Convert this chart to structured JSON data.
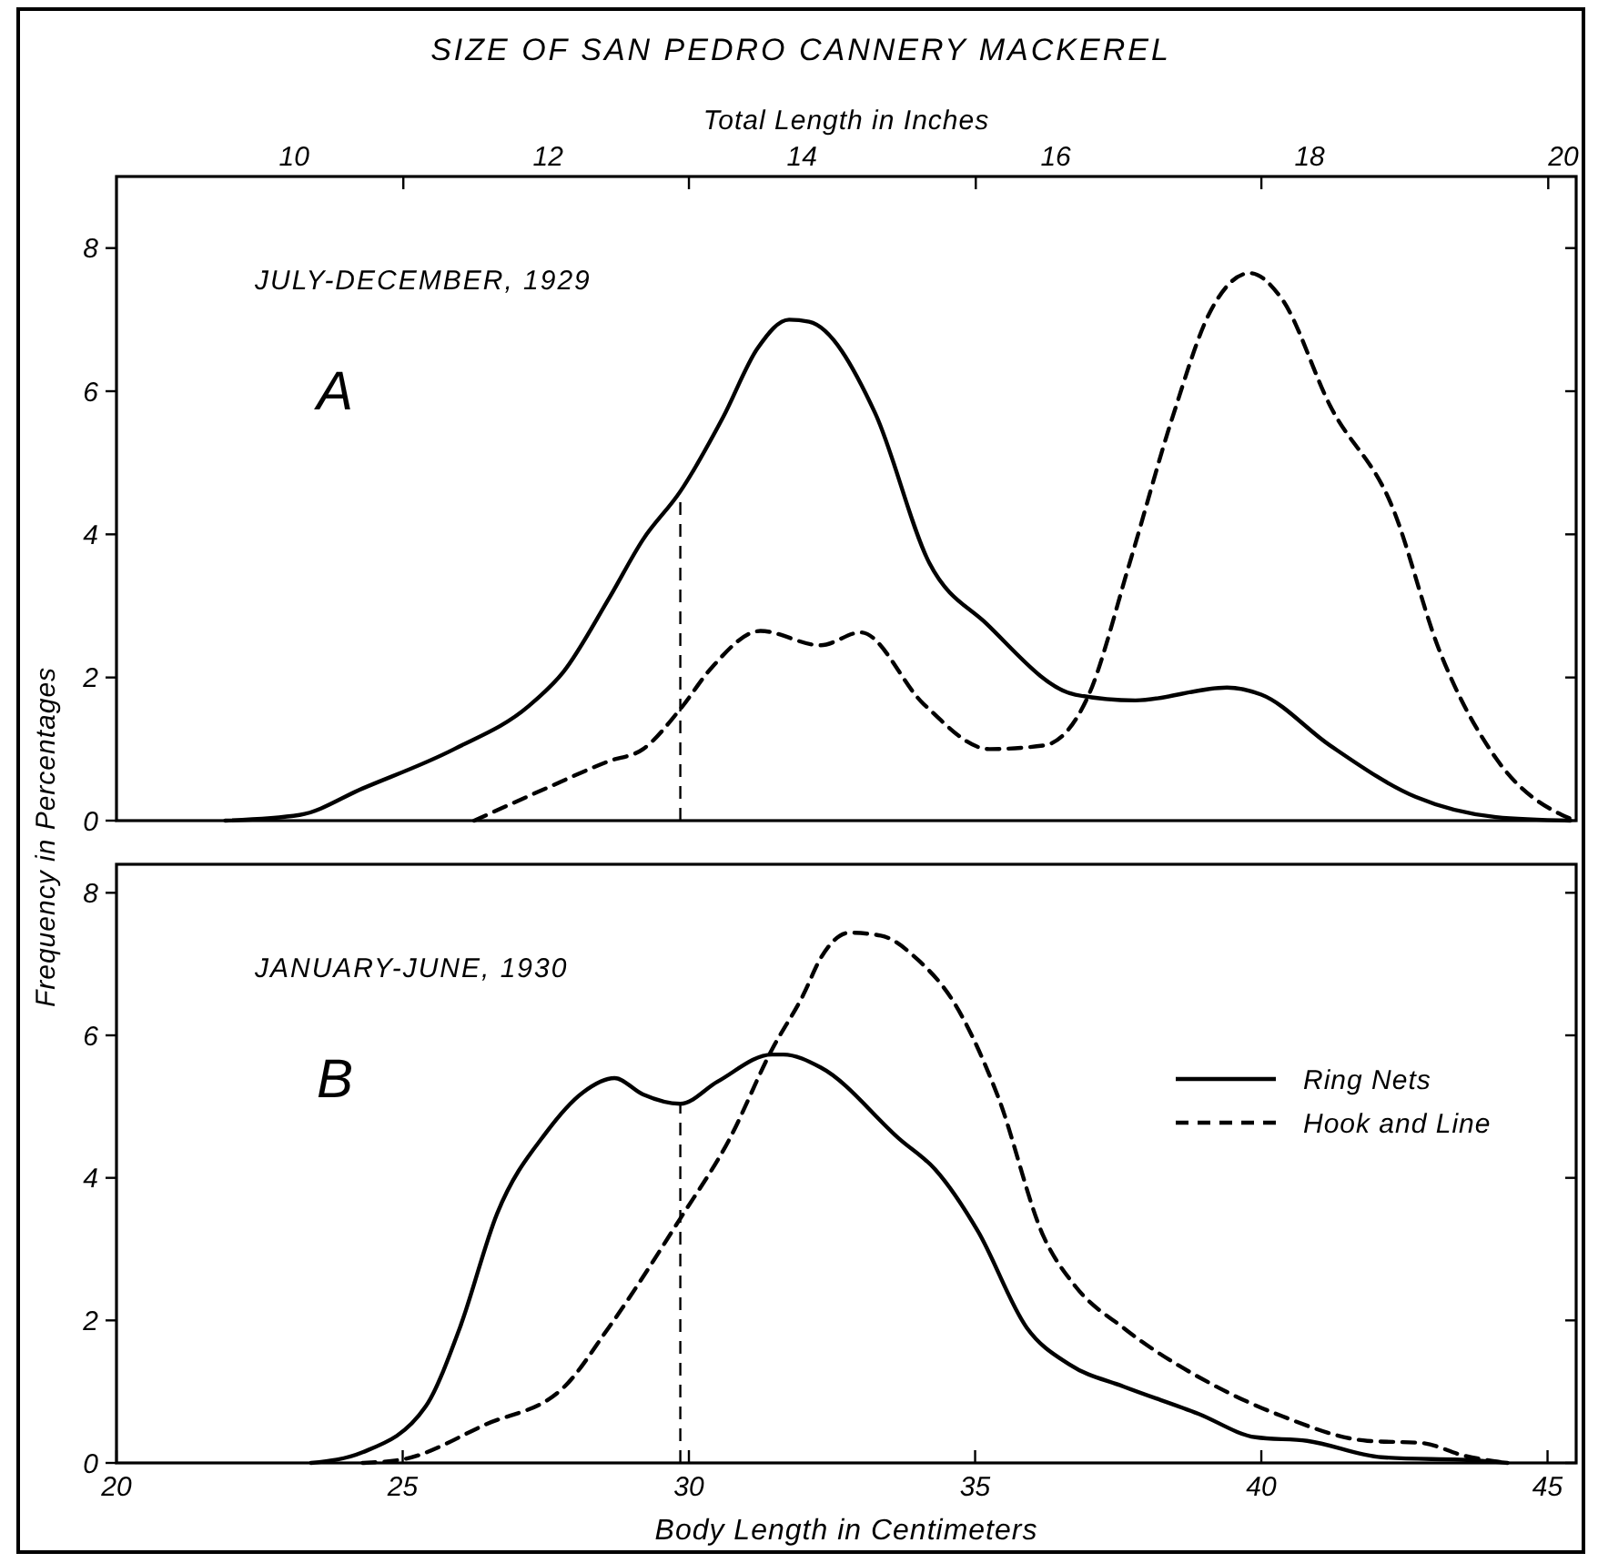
{
  "chart_data": [
    {
      "type": "line",
      "title": "SIZE OF SAN PEDRO CANNERY MACKEREL",
      "x2label": "Total Length in Inches",
      "ylabel": "Frequency in Percentages",
      "annotations": [
        "JULY-DECEMBER, 1929",
        "A"
      ],
      "xlim": [
        20,
        45.5
      ],
      "ylim": [
        0,
        9
      ],
      "yticks": [
        0,
        2,
        4,
        6,
        8
      ],
      "x2lim": [
        8.6,
        20.1
      ],
      "x2ticks": [
        10,
        12,
        14,
        16,
        18,
        20,
        {
          "value": 10.86,
          "label": null
        },
        {
          "value": 13.11,
          "label": null
        },
        {
          "value": 15.37,
          "label": null
        },
        {
          "value": 17.62,
          "label": null
        },
        {
          "value": 19.88,
          "label": null
        }
      ],
      "ref_lines": [
        {
          "axis": "x",
          "value": 29.85,
          "line_style": "dashed",
          "color": "#000000"
        }
      ],
      "grid": false,
      "legend": false,
      "series": [
        {
          "color": "#000000",
          "line_style": "solid",
          "x": [
            21.9,
            23.2,
            24.3,
            25.9,
            27.2,
            27.8,
            28.6,
            29.2,
            29.85,
            30.6,
            31.2,
            31.75,
            32.1,
            33.25,
            34.2,
            35.2,
            36.75,
            37.8,
            39.4,
            40.0,
            41.2,
            42.7,
            44.1,
            45.4
          ],
          "values": [
            0,
            0.08,
            0.45,
            1.0,
            1.6,
            2.07,
            3.1,
            3.93,
            4.6,
            5.64,
            6.6,
            7.0,
            6.97,
            5.7,
            3.6,
            2.75,
            1.76,
            1.68,
            1.86,
            1.76,
            1.05,
            0.33,
            0.05,
            0
          ]
        },
        {
          "color": "#000000",
          "line_style": "dashed",
          "x": [
            26.25,
            27.5,
            28.6,
            29.2,
            29.85,
            30.4,
            31.25,
            32.3,
            33.0,
            34.1,
            35.25,
            36.2,
            36.97,
            37.7,
            38.45,
            39.1,
            39.8,
            40.35,
            41.2,
            42.3,
            43.1,
            44.1,
            45.25,
            45.5
          ],
          "values": [
            0,
            0.45,
            0.83,
            1.0,
            1.56,
            2.14,
            2.65,
            2.45,
            2.63,
            1.63,
            1.0,
            1.05,
            1.73,
            3.6,
            5.64,
            7.1,
            7.65,
            7.3,
            5.8,
            4.36,
            2.4,
            0.87,
            0.08,
            0
          ]
        }
      ]
    },
    {
      "type": "line",
      "xlabel": "Body Length in Centimeters",
      "annotations": [
        "JANUARY-JUNE, 1930",
        "B"
      ],
      "xlim": [
        20,
        45.5
      ],
      "xticks": [
        20,
        25,
        30,
        35,
        40,
        45
      ],
      "ylim": [
        0,
        8.4
      ],
      "yticks": [
        0,
        2,
        4,
        6,
        8
      ],
      "ref_lines": [
        {
          "axis": "x",
          "value": 29.85,
          "line_style": "dashed",
          "color": "#000000"
        }
      ],
      "grid": false,
      "legend": "right",
      "series": [
        {
          "name": "Ring Nets",
          "color": "#000000",
          "line_style": "solid",
          "x": [
            23.4,
            24.3,
            25.4,
            26.0,
            26.65,
            27.5,
            28.15,
            28.7,
            29.2,
            29.85,
            30.5,
            31.45,
            31.65,
            32.3,
            33.7,
            34.3,
            35.05,
            35.9,
            36.65,
            37.6,
            38.9,
            39.9,
            40.8,
            42.1,
            43.85,
            44.3
          ],
          "values": [
            0,
            0.15,
            0.79,
            1.9,
            3.5,
            4.63,
            5.2,
            5.4,
            5.17,
            5.04,
            5.35,
            5.73,
            5.73,
            5.55,
            4.53,
            4.12,
            3.25,
            1.9,
            1.38,
            1.07,
            0.69,
            0.36,
            0.31,
            0.08,
            0.03,
            0
          ]
        },
        {
          "name": "Hook and Line",
          "color": "#000000",
          "line_style": "dashed",
          "x": [
            24.3,
            25.0,
            26.45,
            27.8,
            28.6,
            29.85,
            30.7,
            31.45,
            32.0,
            32.3,
            32.8,
            33.35,
            34.0,
            34.6,
            35.4,
            36.2,
            36.75,
            37.6,
            39.1,
            40.35,
            41.85,
            42.8,
            43.55,
            44.3
          ],
          "values": [
            0,
            0.05,
            0.54,
            1.05,
            1.9,
            3.43,
            4.53,
            5.8,
            6.57,
            7.08,
            7.44,
            7.4,
            7.06,
            6.5,
            5.14,
            3.17,
            2.48,
            1.89,
            1.12,
            0.66,
            0.31,
            0.28,
            0.1,
            0
          ]
        }
      ]
    }
  ]
}
